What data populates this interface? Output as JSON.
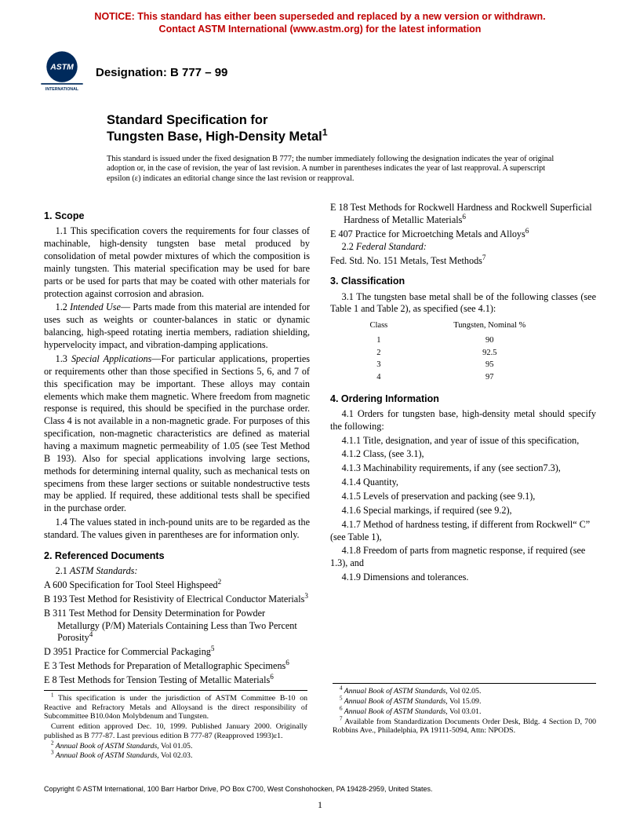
{
  "notice": {
    "line1": "NOTICE: This standard has either been superseded and replaced by a new version or withdrawn.",
    "line2": "Contact ASTM International (www.astm.org) for the latest information"
  },
  "logo": {
    "top_text": "ASTM",
    "bottom_text": "INTERNATIONAL"
  },
  "designation": "Designation: B 777 – 99",
  "title": {
    "line1": "Standard Specification for",
    "line2_text": "Tungsten Base, High-Density Metal",
    "line2_sup": "1"
  },
  "issuance": "This standard is issued under the fixed designation B 777; the number immediately following the designation indicates the year of original adoption or, in the case of revision, the year of last revision. A number in parentheses indicates the year of last reapproval. A superscript epsilon (ε) indicates an editorial change since the last revision or reapproval.",
  "s1": {
    "head": "1. Scope",
    "p1": "1.1 This specification covers the requirements for four classes of machinable, high-density tungsten base metal produced by consolidation of metal powder mixtures of which the composition is mainly tungsten. This material specification may be used for bare parts or be used for parts that may be coated with other materials for protection against corrosion and abrasion.",
    "p2a": "1.2 ",
    "p2i": "Intended Use",
    "p2b": "— Parts made from this material are intended for uses such as weights or counter-balances in static or dynamic balancing, high-speed rotating inertia members, radiation shielding, hypervelocity impact, and vibration-damping applications.",
    "p3a": "1.3 ",
    "p3i": "Special Applications",
    "p3b": "—For particular applications, properties or requirements other than those specified in Sections 5, 6, and 7 of this specification may be important. These alloys may contain elements which make them magnetic. Where freedom from magnetic response is required, this should be specified in the purchase order. Class 4 is not available in a non-magnetic grade. For purposes of this specification, non-magnetic characteristics are defined as material having a maximum magnetic permeability of 1.05 (see Test Method B 193). Also for special applications involving large sections, methods for determining internal quality, such as mechanical tests on specimens from these larger sections or suitable nondestructive tests may be applied. If required, these additional tests shall be specified in the purchase order.",
    "p4": "1.4 The values stated in inch-pound units are to be regarded as the standard. The values given in parentheses are for information only."
  },
  "s2": {
    "head": "2. Referenced Documents",
    "astm_label_a": "2.1 ",
    "astm_label_i": "ASTM Standards:",
    "items": [
      {
        "t": "A 600  Specification for Tool Steel Highspeed",
        "s": "2"
      },
      {
        "t": "B 193 Test Method for Resistivity of Electrical Conductor Materials",
        "s": "3"
      },
      {
        "t": "B 311 Test Method for Density Determination for Powder Metallurgy (P/M) Materials Containing Less than Two Percent Porosity",
        "s": "4"
      },
      {
        "t": "D 3951  Practice for Commercial Packaging",
        "s": "5"
      },
      {
        "t": "E 3 Test Methods for Preparation of Metallographic Specimens",
        "s": "6"
      },
      {
        "t": "E 8  Test Methods for Tension Testing of Metallic Materials",
        "s": "6"
      },
      {
        "t": "E 18 Test Methods for Rockwell Hardness and Rockwell Superficial Hardness of Metallic Materials",
        "s": "6"
      },
      {
        "t": "E 407  Practice for Microetching Metals and Alloys",
        "s": "6"
      }
    ],
    "fed_label_a": "2.2 ",
    "fed_label_i": "Federal Standard:",
    "fed_item_t": "Fed. Std. No. 151  Metals, Test Methods",
    "fed_item_s": "7"
  },
  "s3": {
    "head": "3. Classification",
    "p1": "3.1 The tungsten base metal shall be of the following classes (see Table 1 and Table 2), as specified (see 4.1):",
    "th1": "Class",
    "th2": "Tungsten, Nominal %",
    "rows": [
      [
        "1",
        "90"
      ],
      [
        "2",
        "92.5"
      ],
      [
        "3",
        "95"
      ],
      [
        "4",
        "97"
      ]
    ]
  },
  "s4": {
    "head": "4. Ordering Information",
    "p1": "4.1 Orders for tungsten base, high-density metal should specify the following:",
    "items": [
      "4.1.1 Title, designation, and year of issue of this specification,",
      "4.1.2 Class, (see 3.1),",
      "4.1.3 Machinability requirements, if any (see section7.3),",
      "4.1.4 Quantity,",
      "4.1.5 Levels of preservation and packing (see 9.1),",
      "4.1.6 Special markings, if required (see 9.2),",
      "4.1.7 Method of hardness testing, if different from Rockwell“ C” (see Table 1),",
      "4.1.8 Freedom of parts from magnetic response, if required (see 1.3), and",
      "4.1.9 Dimensions and tolerances."
    ]
  },
  "footnotes_left": [
    {
      "s": "1",
      "t": " This specification is under the jurisdiction of ASTM Committee B-10 on Reactive and Refractory Metals and Alloysand is the direct responsibility of Subcommittee B10.04on Molybdenum and Tungsten."
    },
    {
      "s": "",
      "t": "Current edition approved Dec. 10, 1999. Published January 2000. Originally published as B 777-87. Last previous edition B 777-87 (Reapproved 1993)ε1."
    },
    {
      "s": "2",
      "t": " Annual Book of ASTM Standards, Vol 01.05.",
      "ital": true
    },
    {
      "s": "3",
      "t": " Annual Book of ASTM Standards, Vol 02.03.",
      "ital": true
    }
  ],
  "footnotes_right": [
    {
      "s": "4",
      "t": " Annual Book of ASTM Standards, Vol 02.05.",
      "ital": true
    },
    {
      "s": "5",
      "t": " Annual Book of ASTM Standards, Vol 15.09.",
      "ital": true
    },
    {
      "s": "6",
      "t": " Annual Book of ASTM Standards, Vol 03.01.",
      "ital": true
    },
    {
      "s": "7",
      "t": " Available from Standardization Documents Order Desk, Bldg. 4 Section D, 700 Robbins Ave., Philadelphia, PA 19111-5094, Attn: NPODS."
    }
  ],
  "copyright": "Copyright © ASTM International, 100 Barr Harbor Drive, PO Box C700, West Conshohocken, PA 19428-2959, United States.",
  "pagenum": "1"
}
